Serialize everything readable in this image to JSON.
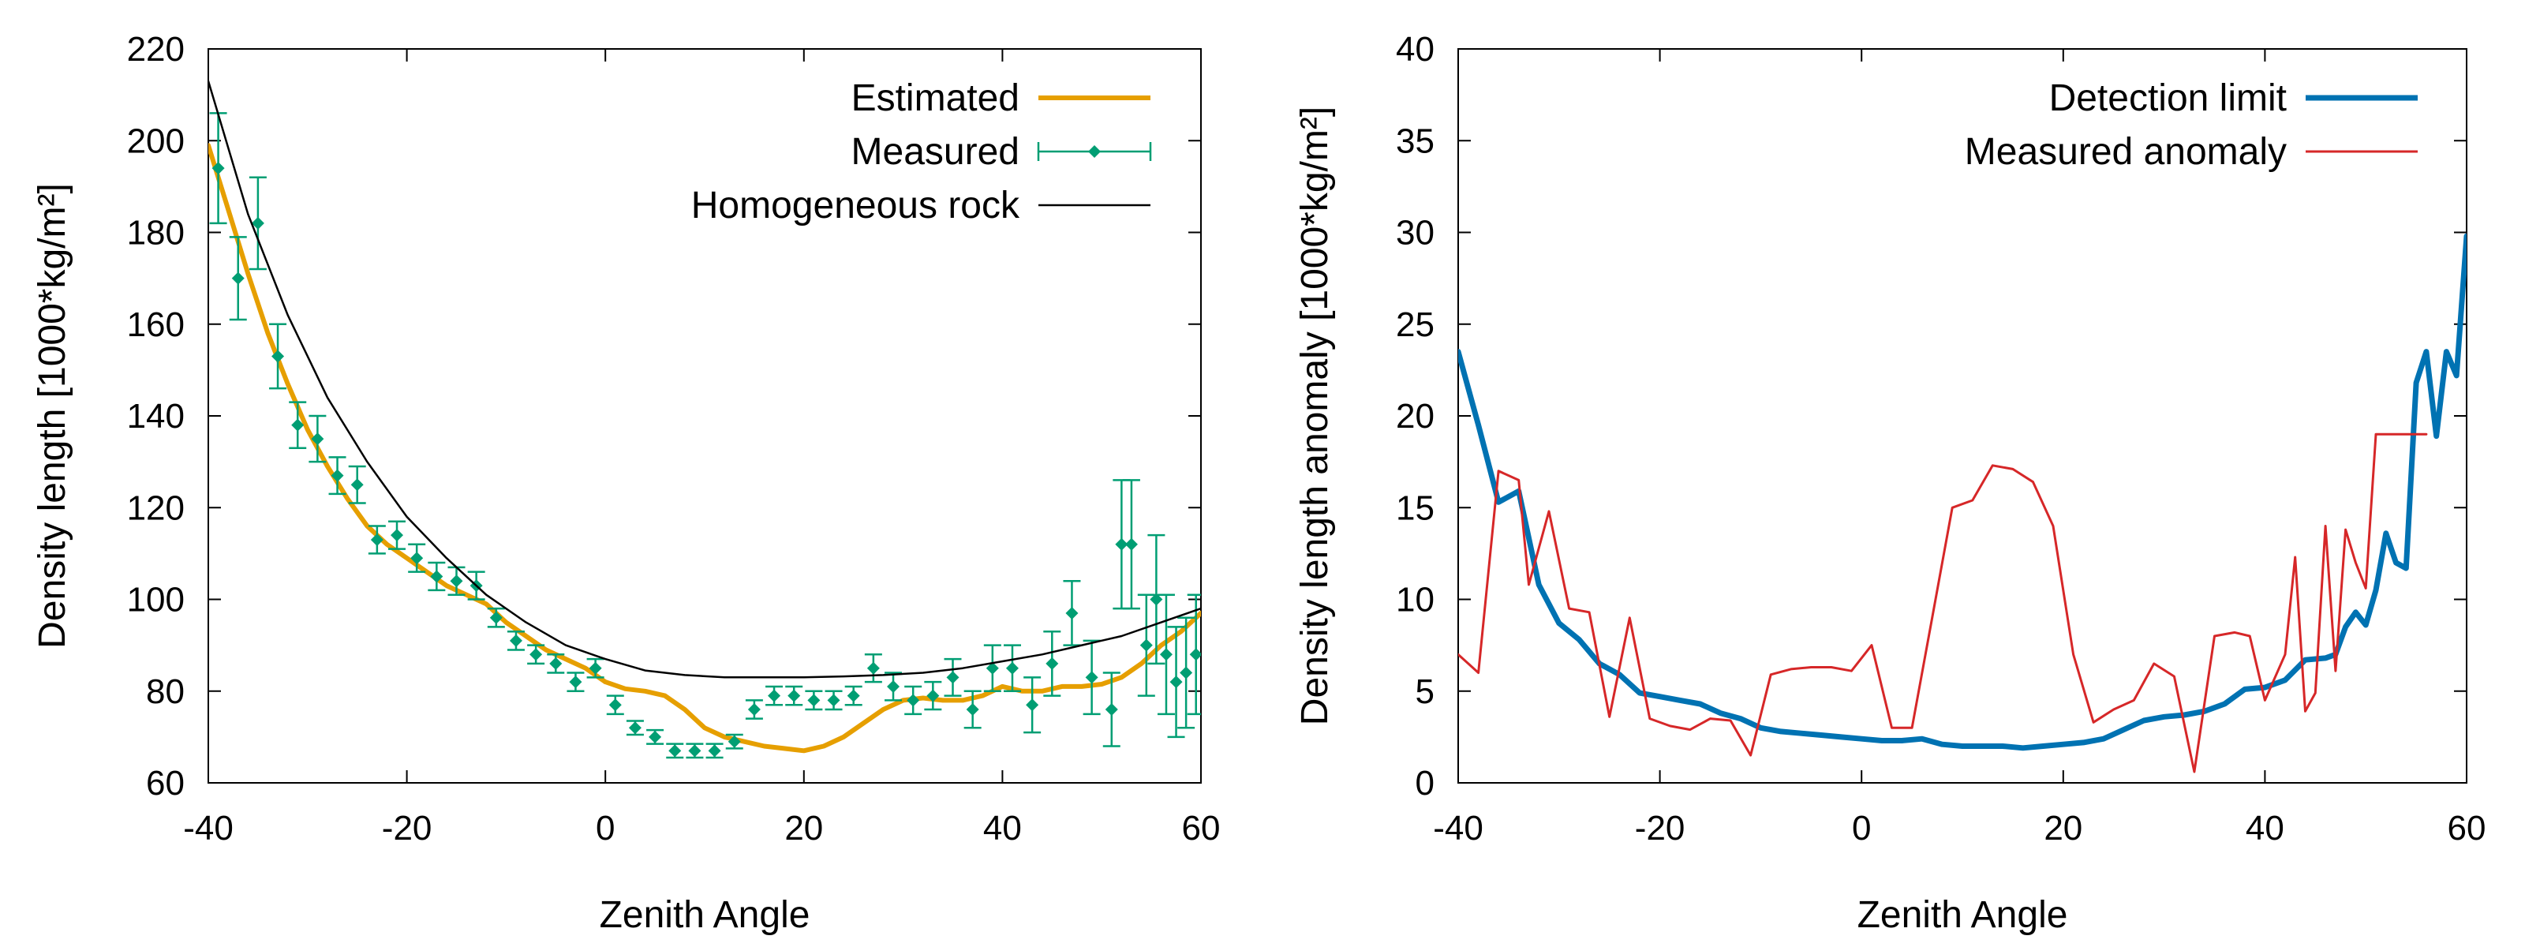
{
  "chart_data": [
    {
      "type": "line",
      "xlabel": "Zenith Angle",
      "ylabel": "Density length [1000*kg/m²]",
      "xlim": [
        -40,
        60
      ],
      "ylim": [
        60,
        220
      ],
      "xticks": [
        -40,
        -20,
        0,
        20,
        40,
        60
      ],
      "yticks": [
        60,
        80,
        100,
        120,
        140,
        160,
        180,
        200,
        220
      ],
      "grid": false,
      "legend_position": "top-right",
      "series": [
        {
          "name": "Estimated",
          "style": "line",
          "color": "#e69f00",
          "x": [
            -40,
            -38,
            -36,
            -34,
            -32,
            -30,
            -28,
            -26,
            -24,
            -22,
            -20,
            -18,
            -16,
            -14,
            -12,
            -10,
            -8,
            -6,
            -4,
            -2,
            0,
            2,
            4,
            6,
            8,
            10,
            12,
            14,
            16,
            18,
            20,
            22,
            24,
            26,
            28,
            30,
            32,
            34,
            36,
            38,
            40,
            42,
            44,
            46,
            48,
            50,
            52,
            54,
            56,
            58,
            60
          ],
          "y": [
            199,
            185,
            171,
            158,
            147,
            137,
            129,
            122,
            116,
            112,
            109,
            106,
            103,
            101,
            99,
            95,
            92,
            89,
            87,
            85,
            82,
            80.5,
            80,
            79,
            76,
            72,
            70,
            69,
            68,
            67.5,
            67,
            68,
            70,
            73,
            76,
            78,
            78.5,
            78,
            78,
            79,
            81,
            80,
            80,
            81,
            81,
            81.5,
            83,
            86,
            90,
            93,
            97
          ]
        },
        {
          "name": "Measured",
          "style": "points-with-errorbars",
          "color": "#009e73",
          "x": [
            -39,
            -37,
            -35,
            -33,
            -31,
            -29,
            -27,
            -25,
            -23,
            -21,
            -19,
            -17,
            -15,
            -13,
            -11,
            -9,
            -7,
            -5,
            -3,
            -1,
            1,
            3,
            5,
            7,
            9,
            11,
            13,
            15,
            17,
            19,
            21,
            23,
            25,
            27,
            29,
            31,
            33,
            35,
            37,
            39,
            41,
            43,
            45,
            47,
            49,
            51,
            52,
            53,
            54.5,
            55.5,
            56.5,
            57.5,
            58.5,
            59.5
          ],
          "y": [
            194,
            170,
            182,
            153,
            138,
            135,
            127,
            125,
            113,
            114,
            109,
            105,
            104,
            103,
            96,
            91,
            88,
            86,
            82,
            85,
            77,
            72,
            70,
            67,
            67,
            67,
            69,
            76,
            79,
            79,
            78,
            78,
            79,
            85,
            81,
            78,
            79,
            83,
            76,
            85,
            85,
            77,
            86,
            97,
            83,
            76,
            112,
            112,
            90,
            100,
            88,
            82,
            84,
            88
          ],
          "yerr": [
            12,
            9,
            10,
            7,
            5,
            5,
            4,
            4,
            3,
            3,
            3,
            3,
            3,
            3,
            2,
            2,
            2,
            2,
            2,
            2,
            2,
            1.5,
            1.5,
            1.5,
            1.5,
            1.5,
            1.5,
            2,
            2,
            2,
            2,
            2,
            2,
            3,
            3,
            3,
            3,
            4,
            4,
            5,
            5,
            6,
            7,
            7,
            8,
            8,
            14,
            14,
            11,
            14,
            13,
            12,
            12,
            13
          ]
        },
        {
          "name": "Homogeneous rock",
          "style": "line",
          "color": "#000000",
          "x": [
            -40,
            -36,
            -32,
            -28,
            -24,
            -20,
            -16,
            -12,
            -8,
            -4,
            0,
            4,
            8,
            12,
            16,
            20,
            24,
            28,
            32,
            36,
            40,
            44,
            48,
            52,
            56,
            60
          ],
          "y": [
            213,
            184,
            162,
            144,
            130,
            118,
            109,
            101,
            95,
            90,
            87,
            84.5,
            83.5,
            83,
            83,
            83,
            83.2,
            83.5,
            84,
            85,
            86.5,
            88,
            90,
            92,
            95,
            98
          ]
        }
      ]
    },
    {
      "type": "line",
      "xlabel": "Zenith Angle",
      "ylabel": "Density length anomaly [1000*kg/m²]",
      "xlim": [
        -40,
        60
      ],
      "ylim": [
        0,
        40
      ],
      "xticks": [
        -40,
        -20,
        0,
        20,
        40,
        60
      ],
      "yticks": [
        0,
        5,
        10,
        15,
        20,
        25,
        30,
        35,
        40
      ],
      "grid": false,
      "legend_position": "top-right",
      "series": [
        {
          "name": "Detection limit",
          "style": "line-thick",
          "color": "#0072b2",
          "x": [
            -40,
            -38,
            -36,
            -34,
            -32,
            -30,
            -28,
            -26,
            -24,
            -22,
            -20,
            -18,
            -16,
            -14,
            -12,
            -10,
            -8,
            -6,
            -4,
            -2,
            0,
            2,
            4,
            6,
            8,
            10,
            12,
            14,
            16,
            18,
            20,
            22,
            24,
            26,
            28,
            30,
            32,
            34,
            36,
            38,
            40,
            42,
            44,
            46,
            47,
            48,
            49,
            50,
            51,
            52,
            53,
            54,
            55,
            56,
            57,
            58,
            59,
            59.5,
            60
          ],
          "y": [
            23.5,
            19.5,
            15.3,
            15.9,
            10.8,
            8.7,
            7.8,
            6.5,
            5.9,
            4.9,
            4.7,
            4.5,
            4.3,
            3.8,
            3.5,
            3.0,
            2.8,
            2.7,
            2.6,
            2.5,
            2.4,
            2.3,
            2.3,
            2.4,
            2.1,
            2.0,
            2.0,
            2.0,
            1.9,
            2.0,
            2.1,
            2.2,
            2.4,
            2.9,
            3.4,
            3.6,
            3.7,
            3.9,
            4.3,
            5.1,
            5.2,
            5.6,
            6.7,
            6.8,
            7.0,
            8.5,
            9.3,
            8.6,
            10.5,
            13.6,
            12.0,
            11.7,
            21.8,
            23.5,
            18.9,
            23.5,
            22.2,
            26,
            29.8
          ]
        },
        {
          "name": "Measured anomaly",
          "style": "line-thin",
          "color": "#d62728",
          "x": [
            -40,
            -39,
            -38,
            -36,
            -34,
            -33,
            -31,
            -29,
            -27,
            -25,
            -23,
            -21,
            -19,
            -17,
            -15,
            -13,
            -11,
            -9,
            -7,
            -5,
            -3,
            -1,
            1,
            3,
            5,
            7,
            9,
            11,
            13,
            15,
            17,
            19,
            21,
            23,
            25,
            27,
            29,
            31,
            33,
            35,
            37,
            38.5,
            40,
            42,
            43,
            44,
            45,
            46,
            47,
            48,
            49,
            50,
            51,
            52,
            53,
            54,
            55,
            56
          ],
          "y": [
            7.0,
            6.5,
            6.0,
            17.0,
            16.5,
            10.8,
            14.8,
            9.5,
            9.3,
            3.6,
            9.0,
            3.5,
            3.1,
            2.9,
            3.5,
            3.4,
            1.5,
            5.9,
            6.2,
            6.3,
            6.3,
            6.1,
            7.5,
            3.0,
            3.0,
            9.0,
            15.0,
            15.4,
            17.3,
            17.1,
            16.4,
            14.0,
            7.0,
            3.3,
            4.0,
            4.5,
            6.5,
            5.8,
            0.6,
            8.0,
            8.2,
            8.0,
            4.5,
            7.0,
            12.3,
            3.9,
            4.9,
            14.0,
            6.1,
            13.8,
            12.0,
            10.6,
            19.0,
            19.0,
            19.0,
            19.0,
            19.0,
            19.0
          ]
        }
      ]
    }
  ]
}
